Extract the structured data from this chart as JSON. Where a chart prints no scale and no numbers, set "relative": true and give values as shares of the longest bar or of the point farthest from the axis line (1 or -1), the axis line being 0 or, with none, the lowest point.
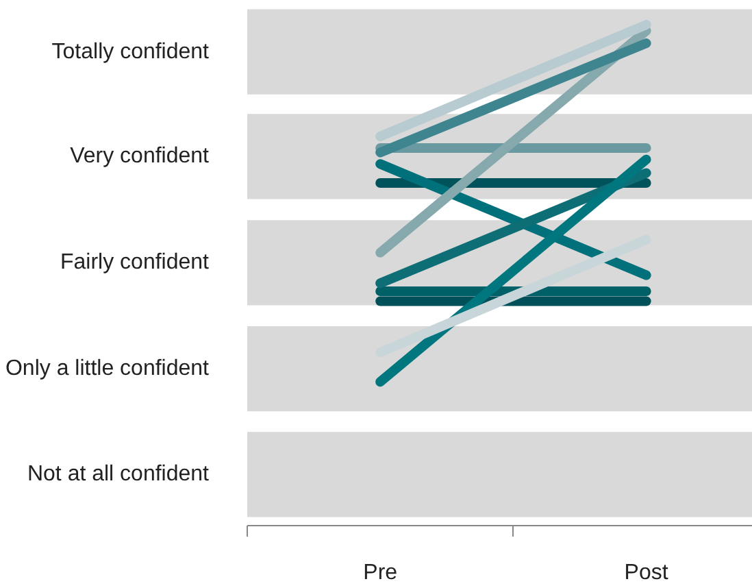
{
  "chart_data": {
    "type": "line",
    "categories": [
      "Pre",
      "Post"
    ],
    "relative": true,
    "y_categories": [
      "Totally confident",
      "Very confident",
      "Fairly confident",
      "Only a little confident",
      "Not at all confident"
    ],
    "bands": [
      {
        "axis": "y",
        "from": 0.017,
        "to": 0.187,
        "color": "#d9d9d9"
      },
      {
        "axis": "y",
        "from": 0.228,
        "to": 0.398,
        "color": "#d9d9d9"
      },
      {
        "axis": "y",
        "from": 0.44,
        "to": 0.61,
        "color": "#d9d9d9"
      },
      {
        "axis": "y",
        "from": 0.652,
        "to": 0.822,
        "color": "#d9d9d9"
      },
      {
        "axis": "y",
        "from": 0.861,
        "to": 1.031,
        "color": "#d9d9d9"
      }
    ],
    "series": [
      {
        "color": "#00505a",
        "values": [
          0.448,
          0.448
        ]
      },
      {
        "color": "#006068",
        "values": [
          0.468,
          0.468
        ]
      },
      {
        "color": "#00535b",
        "values": [
          0.684,
          0.684
        ]
      },
      {
        "color": "#6a9aa1",
        "values": [
          0.754,
          0.754
        ]
      },
      {
        "color": "#00707a",
        "values": [
          0.722,
          0.5
        ]
      },
      {
        "color": "#0e6e76",
        "values": [
          0.484,
          0.704
        ]
      },
      {
        "color": "#00767f",
        "values": [
          0.287,
          0.731
        ]
      },
      {
        "color": "#c8d6da",
        "values": [
          0.346,
          0.571
        ]
      },
      {
        "color": "#86a9ae",
        "values": [
          0.545,
          0.988
        ]
      },
      {
        "color": "#3f8590",
        "values": [
          0.745,
          0.963
        ]
      },
      {
        "color": "#b7cbd0",
        "values": [
          0.777,
          1.0
        ]
      }
    ],
    "grid": false,
    "marker": "none",
    "line_style": "solid"
  }
}
